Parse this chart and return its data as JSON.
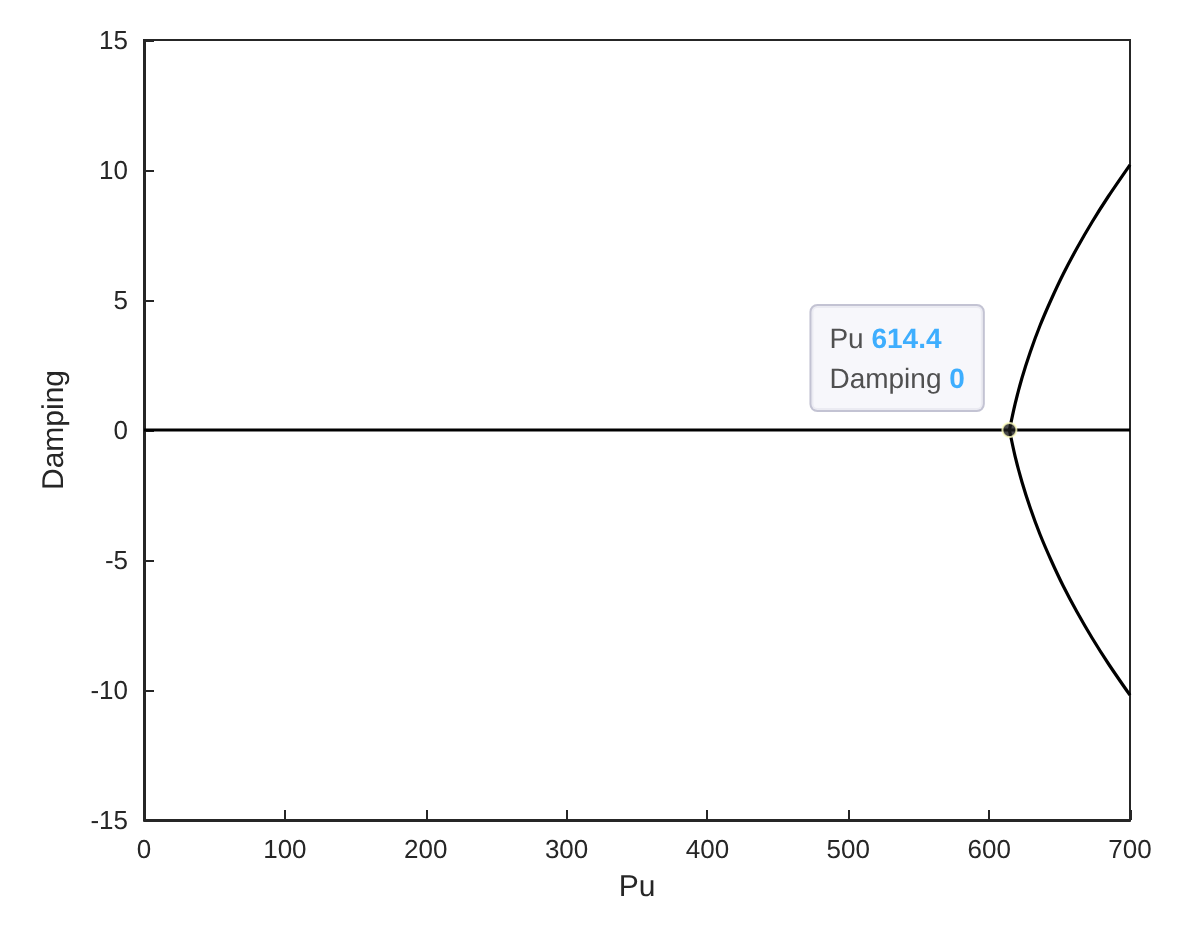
{
  "chart_data": {
    "type": "line",
    "xlabel": "Pu",
    "ylabel": "Damping",
    "xlim": [
      0,
      700
    ],
    "ylim": [
      -15,
      15
    ],
    "xticks": [
      0,
      100,
      200,
      300,
      400,
      500,
      600,
      700
    ],
    "yticks": [
      -15,
      -10,
      -5,
      0,
      5,
      10,
      15
    ],
    "marker": "none",
    "series": [
      {
        "color": "#000000",
        "x": [
          0,
          700
        ],
        "values": [
          0,
          0
        ]
      },
      {
        "color": "#000000",
        "x": [
          614.4,
          618.4,
          623.3,
          629.2,
          636,
          643.9,
          652.6,
          662.4,
          673.1,
          684.8,
          700
        ],
        "values": [
          0,
          1,
          2,
          3,
          4,
          5,
          6,
          7,
          8,
          9,
          10.2
        ]
      },
      {
        "color": "#000000",
        "x": [
          614.4,
          618.4,
          623.3,
          629.2,
          636,
          643.9,
          652.6,
          662.4,
          673.1,
          684.8,
          700
        ],
        "values": [
          0,
          -1,
          -2,
          -3,
          -4,
          -5,
          -6,
          -7,
          -8,
          -9,
          -10.2
        ]
      }
    ],
    "annotations": [
      {
        "text": "Pu 614.4\nDamping 0",
        "x": 614.4,
        "y": 0
      }
    ]
  }
}
